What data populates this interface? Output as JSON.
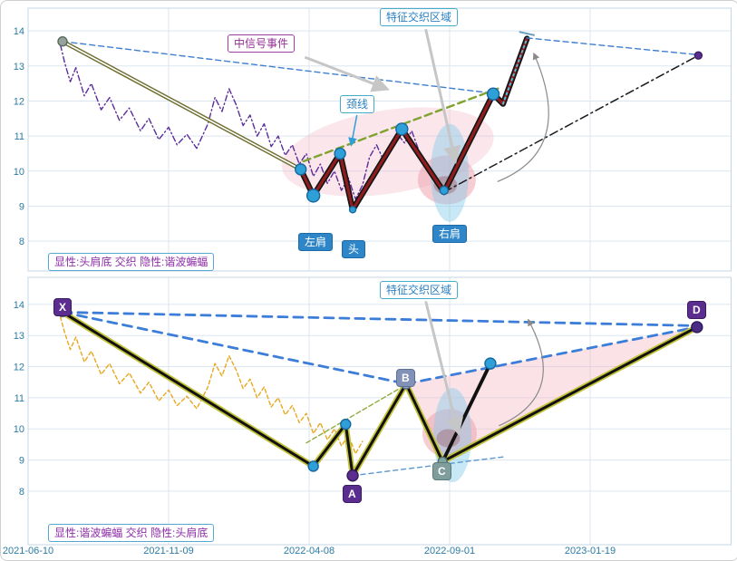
{
  "annotations": {
    "signal_event": "中信号事件",
    "neckline": "颈线",
    "feature_zone_top": "特征交织区域",
    "feature_zone_bottom": "特征交织区域",
    "left_shoulder": "左肩",
    "head": "头",
    "right_shoulder": "右肩",
    "x": "X",
    "a": "A",
    "b": "B",
    "c": "C",
    "d": "D",
    "caption_top": "显性:头肩底 交织 隐性:谐波蝙蝠",
    "caption_bottom": "显性:谐波蝙蝠 交织 隐性:头肩底"
  },
  "chart_data": {
    "type": "line",
    "x_unit": "tick-index (0 = first date tick, 1 unit = one tick spacing)",
    "x_ticks": {
      "labels": [
        "2021-06-10",
        "2021-11-09",
        "2022-04-08",
        "2022-09-01",
        "2023-01-19"
      ],
      "positions": [
        0,
        1,
        2,
        3,
        4
      ]
    },
    "xlim": [
      0,
      5.0
    ],
    "price": [
      [
        0.23,
        13.6
      ],
      [
        0.26,
        13.1
      ],
      [
        0.3,
        12.55
      ],
      [
        0.34,
        12.95
      ],
      [
        0.4,
        12.15
      ],
      [
        0.45,
        12.5
      ],
      [
        0.52,
        11.75
      ],
      [
        0.58,
        12.1
      ],
      [
        0.65,
        11.45
      ],
      [
        0.72,
        11.8
      ],
      [
        0.8,
        11.15
      ],
      [
        0.86,
        11.5
      ],
      [
        0.93,
        10.9
      ],
      [
        1.0,
        11.25
      ],
      [
        1.06,
        10.75
      ],
      [
        1.13,
        11.05
      ],
      [
        1.2,
        10.65
      ],
      [
        1.28,
        11.35
      ],
      [
        1.33,
        12.1
      ],
      [
        1.38,
        11.7
      ],
      [
        1.43,
        12.35
      ],
      [
        1.48,
        11.9
      ],
      [
        1.53,
        11.3
      ],
      [
        1.58,
        11.6
      ],
      [
        1.63,
        11.0
      ],
      [
        1.68,
        11.35
      ],
      [
        1.73,
        10.7
      ],
      [
        1.78,
        11.0
      ],
      [
        1.83,
        10.45
      ],
      [
        1.88,
        10.75
      ],
      [
        1.93,
        10.2
      ],
      [
        1.98,
        10.5
      ],
      [
        2.03,
        9.85
      ],
      [
        2.08,
        10.2
      ],
      [
        2.13,
        9.65
      ],
      [
        2.18,
        10.0
      ],
      [
        2.23,
        9.45
      ],
      [
        2.28,
        9.8
      ],
      [
        2.33,
        9.2
      ],
      [
        2.38,
        9.6
      ],
      [
        2.43,
        10.4
      ],
      [
        2.48,
        10.75
      ],
      [
        2.53,
        10.3
      ],
      [
        2.58,
        10.6
      ],
      [
        2.63,
        11.05
      ],
      [
        2.68,
        10.8
      ],
      [
        2.73,
        11.15
      ],
      [
        2.78,
        10.6
      ],
      [
        2.83,
        10.2
      ],
      [
        2.88,
        9.9
      ],
      [
        2.93,
        9.6
      ],
      [
        2.98,
        9.5
      ]
    ],
    "patterns": {
      "top": {
        "type": "head_and_shoulders_bottom",
        "left_shoulder": [
          2.03,
          9.3
        ],
        "head": [
          2.31,
          8.9
        ],
        "right_shoulder": [
          2.96,
          9.4
        ],
        "neckline_break": [
          3.31,
          12.2
        ],
        "final_peak": [
          3.55,
          13.78
        ]
      },
      "bottom": {
        "type": "harmonic_bat",
        "X": [
          0.245,
          13.75
        ],
        "A": [
          2.31,
          8.5
        ],
        "B": [
          2.69,
          11.45
        ],
        "C": [
          2.95,
          8.95
        ],
        "D": [
          4.76,
          13.27
        ]
      }
    },
    "panels": [
      {
        "name": "panel-head-shoulders-bottom",
        "ylim": [
          7.15,
          14.65
        ],
        "y_ticks": [
          8,
          9,
          10,
          11,
          12,
          13,
          14
        ],
        "shapes": [
          {
            "type": "ellipse",
            "name": "pattern-highlight-pink",
            "cx": 2.56,
            "cy": 10.55,
            "rx": 118,
            "ry": 46,
            "rot": -9,
            "fill": "#f2b8c6",
            "opacity": 0.35
          },
          {
            "type": "ellipse",
            "name": "right-shoulder-pink",
            "cx": 2.98,
            "cy": 9.75,
            "rx": 32,
            "ry": 27,
            "fill": "#eda4ae",
            "opacity": 0.55
          },
          {
            "type": "ellipse",
            "name": "right-shoulder-red",
            "cx": 2.97,
            "cy": 9.6,
            "rx": 13,
            "ry": 10,
            "fill": "#c03a3a",
            "opacity": 0.6
          },
          {
            "type": "ellipse",
            "name": "feature-zone-ellipse",
            "cx": 3.0,
            "cy": 9.95,
            "rx": 21,
            "ry": 54,
            "fill": "#86cbe8",
            "opacity": 0.45
          }
        ],
        "series": [
          {
            "name": "price-line-purple",
            "ref": "price",
            "color": "#5b2c9b",
            "width": 1.4,
            "dash": "6 3 1.5 3"
          },
          {
            "name": "descending-dashed-blue",
            "points": [
              [
                0.245,
                13.7
              ],
              [
                3.31,
                12.22
              ]
            ],
            "color": "#3f7fd2",
            "width": 1.4,
            "dash": "6 4"
          },
          {
            "name": "decline-trend-olive",
            "points": [
              [
                0.245,
                13.7
              ],
              [
                1.94,
                10.05
              ]
            ],
            "color": "#6f6f33",
            "width": 4.5,
            "white_core": 1.6
          },
          {
            "name": "neckline-dashed",
            "points": [
              [
                1.96,
                10.28
              ],
              [
                3.36,
                12.38
              ]
            ],
            "color": "#7fa32e",
            "width": 2.4,
            "dash": "8 5"
          },
          {
            "name": "head-shoulders-zigzag",
            "points": [
              [
                1.94,
                10.05
              ],
              [
                2.03,
                9.3
              ],
              [
                2.22,
                10.5
              ],
              [
                2.31,
                8.9
              ],
              [
                2.66,
                11.2
              ],
              [
                2.96,
                9.4
              ],
              [
                3.31,
                12.2
              ],
              [
                3.38,
                11.92
              ],
              [
                3.55,
                13.78
              ]
            ],
            "color": "#8f1d1d",
            "width": 3.2,
            "outline": {
              "color": "#151515",
              "width": 6.5
            }
          },
          {
            "name": "breakout-leg-dotted",
            "points": [
              [
                3.38,
                11.92
              ],
              [
                3.55,
                13.78
              ]
            ],
            "color": "#49c8e8",
            "width": 1.8,
            "dash": "2 3.5"
          },
          {
            "name": "projection-dashed-blue",
            "points": [
              [
                3.55,
                13.8
              ],
              [
                4.77,
                13.32
              ]
            ],
            "color": "#3f7fd2",
            "width": 1.4,
            "dash": "6 4"
          },
          {
            "name": "projection-dashdot-black",
            "points": [
              [
                2.96,
                9.4
              ],
              [
                4.77,
                13.3
              ]
            ],
            "color": "#1a1a1a",
            "width": 1.5,
            "dash": "9 4 2 4"
          },
          {
            "name": "peak-tick",
            "points": [
              [
                3.5,
                13.97
              ],
              [
                3.6,
                13.88
              ]
            ],
            "color": "#6a9ec0",
            "width": 2
          }
        ],
        "markers": [
          {
            "name": "start-point",
            "x": 0.245,
            "y": 13.7,
            "r": 5,
            "fill": "#97a29b",
            "stroke": "#5a6a5e"
          },
          {
            "name": "pattern-start-point",
            "x": 1.94,
            "y": 10.05,
            "r": 6,
            "fill": "#2f9fd8",
            "stroke": "#1767a0"
          },
          {
            "name": "left-shoulder-point",
            "x": 2.03,
            "y": 9.3,
            "r": 7,
            "fill": "#2f9fd8",
            "stroke": "#1767a0"
          },
          {
            "name": "inner-peak-point",
            "x": 2.22,
            "y": 10.5,
            "r": 6,
            "fill": "#2f9fd8",
            "stroke": "#1767a0"
          },
          {
            "name": "head-point",
            "x": 2.31,
            "y": 8.9,
            "r": 3.5,
            "fill": "#2f9fd8",
            "stroke": "#1767a0"
          },
          {
            "name": "neck-peak-point",
            "x": 2.66,
            "y": 11.2,
            "r": 6.5,
            "fill": "#2f9fd8",
            "stroke": "#1767a0"
          },
          {
            "name": "right-shoulder-point",
            "x": 2.96,
            "y": 9.45,
            "r": 4.5,
            "fill": "#2f9fd8",
            "stroke": "#1767a0"
          },
          {
            "name": "breakout-point",
            "x": 3.31,
            "y": 12.2,
            "r": 6.5,
            "fill": "#2f9fd8",
            "stroke": "#1767a0"
          },
          {
            "name": "target-point",
            "x": 4.77,
            "y": 13.3,
            "r": 4,
            "fill": "#5b2d8e",
            "stroke": "#3c1c66"
          }
        ],
        "arrows": [
          {
            "name": "signal-event-arrow",
            "from": [
              1.97,
              13.25
            ],
            "to": [
              2.55,
              12.35
            ],
            "color": "#c6c6c6",
            "width": 3
          },
          {
            "name": "neckline-arrow",
            "from": [
              2.34,
              11.6
            ],
            "to": [
              2.3,
              10.75
            ],
            "color": "#2f9fd8",
            "width": 1.5
          },
          {
            "name": "feature-zone-arrow",
            "from": [
              2.83,
              14.05
            ],
            "to": [
              3.04,
              10.3
            ],
            "color": "#c6c6c6",
            "width": 3
          },
          {
            "name": "curved-projection-arrow",
            "from": [
              3.34,
              9.7
            ],
            "ctrl": [
              3.9,
              10.6
            ],
            "to": [
              3.6,
              13.35
            ],
            "color": "#8a8a8a",
            "width": 1.2
          }
        ]
      },
      {
        "name": "panel-harmonic-bat",
        "ylim": [
          6.28,
          14.87
        ],
        "y_ticks": [
          8,
          9,
          10,
          11,
          12,
          13,
          14
        ],
        "shapes": [
          {
            "type": "polygon",
            "name": "prz-pink-triangle",
            "points": [
              [
                2.69,
                11.45
              ],
              [
                4.76,
                13.27
              ],
              [
                2.95,
                8.95
              ]
            ],
            "fill": "#f5b6c4",
            "opacity": 0.4
          },
          {
            "type": "ellipse",
            "name": "c-point-pink",
            "cx": 3.0,
            "cy": 9.85,
            "rx": 30,
            "ry": 27,
            "fill": "#eda4ae",
            "opacity": 0.55
          },
          {
            "type": "ellipse",
            "name": "c-point-red",
            "cx": 2.99,
            "cy": 9.7,
            "rx": 13,
            "ry": 10,
            "fill": "#c03a3a",
            "opacity": 0.6
          },
          {
            "type": "ellipse",
            "name": "feature-zone-ellipse",
            "cx": 3.02,
            "cy": 9.8,
            "rx": 21,
            "ry": 52,
            "fill": "#86cbe8",
            "opacity": 0.45
          }
        ],
        "series": [
          {
            "name": "price-line-orange",
            "ref": "price",
            "xmax": 2.4,
            "color": "#e7a81e",
            "width": 1.4,
            "dash": "4 3"
          },
          {
            "name": "xd-dashed",
            "points": [
              [
                0.245,
                13.75
              ],
              [
                4.7,
                13.32
              ]
            ],
            "color": "#3b7dd8",
            "width": 2.8,
            "dash": "10 7"
          },
          {
            "name": "xb-dashed",
            "points": [
              [
                0.245,
                13.75
              ],
              [
                2.69,
                11.45
              ]
            ],
            "color": "#3b7dd8",
            "width": 2.8,
            "dash": "10 7"
          },
          {
            "name": "bd-dashed",
            "points": [
              [
                2.69,
                11.45
              ],
              [
                4.76,
                13.27
              ]
            ],
            "color": "#3b7dd8",
            "width": 2.8,
            "dash": "10 7"
          },
          {
            "name": "ac-dashed-thin",
            "points": [
              [
                2.31,
                8.5
              ],
              [
                3.38,
                9.1
              ]
            ],
            "color": "#5a99d0",
            "width": 1.4,
            "dash": "5 4"
          },
          {
            "name": "ab-trend-green",
            "points": [
              [
                1.98,
                9.55
              ],
              [
                2.72,
                11.5
              ]
            ],
            "color": "#8fac3c",
            "width": 1.4,
            "dash": "5 3"
          },
          {
            "name": "xabcd-zigzag",
            "points": [
              [
                0.245,
                13.75
              ],
              [
                2.03,
                8.8
              ],
              [
                2.26,
                10.15
              ],
              [
                2.31,
                8.5
              ],
              [
                2.69,
                11.45
              ],
              [
                2.95,
                8.95
              ],
              [
                4.76,
                13.27
              ]
            ],
            "color": "#111111",
            "width": 3,
            "outline": {
              "color": "#c2c23a",
              "width": 6.5
            }
          },
          {
            "name": "breakout-leg",
            "points": [
              [
                2.95,
                8.95
              ],
              [
                3.29,
                12.1
              ]
            ],
            "color": "#111111",
            "width": 3.8
          }
        ],
        "markers": [
          {
            "name": "x-point",
            "x": 0.245,
            "y": 13.75,
            "r": 5,
            "fill": "#97a29b",
            "stroke": "#5a6a5e"
          },
          {
            "name": "swing-low-point",
            "x": 2.03,
            "y": 8.8,
            "r": 5.5,
            "fill": "#2f9fd8",
            "stroke": "#1767a0"
          },
          {
            "name": "swing-high-point",
            "x": 2.26,
            "y": 10.15,
            "r": 5.5,
            "fill": "#2f9fd8",
            "stroke": "#1767a0"
          },
          {
            "name": "b-point",
            "x": 2.69,
            "y": 11.45,
            "r": 5.5,
            "fill": "#8fa0c0",
            "stroke": "#5a6a90"
          },
          {
            "name": "a-point",
            "x": 2.31,
            "y": 8.5,
            "r": 6,
            "fill": "#5b2d8e",
            "stroke": "#36175e"
          },
          {
            "name": "c-point",
            "x": 2.95,
            "y": 8.95,
            "r": 5,
            "fill": "#7fa39e",
            "stroke": "#4c6a66"
          },
          {
            "name": "breakout-point",
            "x": 3.29,
            "y": 12.1,
            "r": 6,
            "fill": "#2f9fd8",
            "stroke": "#1767a0"
          },
          {
            "name": "d-point",
            "x": 4.76,
            "y": 13.27,
            "r": 6,
            "fill": "#4a2b86",
            "stroke": "#2e1858"
          }
        ],
        "arrows": [
          {
            "name": "feature-zone-arrow",
            "from": [
              2.83,
              14.1
            ],
            "to": [
              3.06,
              9.9
            ],
            "color": "#c6c6c6",
            "width": 3
          },
          {
            "name": "curved-projection-arrow",
            "from": [
              3.35,
              10.1
            ],
            "ctrl": [
              3.85,
              11.1
            ],
            "to": [
              3.56,
              13.5
            ],
            "color": "#8a8a8a",
            "width": 1.2
          }
        ]
      }
    ]
  }
}
